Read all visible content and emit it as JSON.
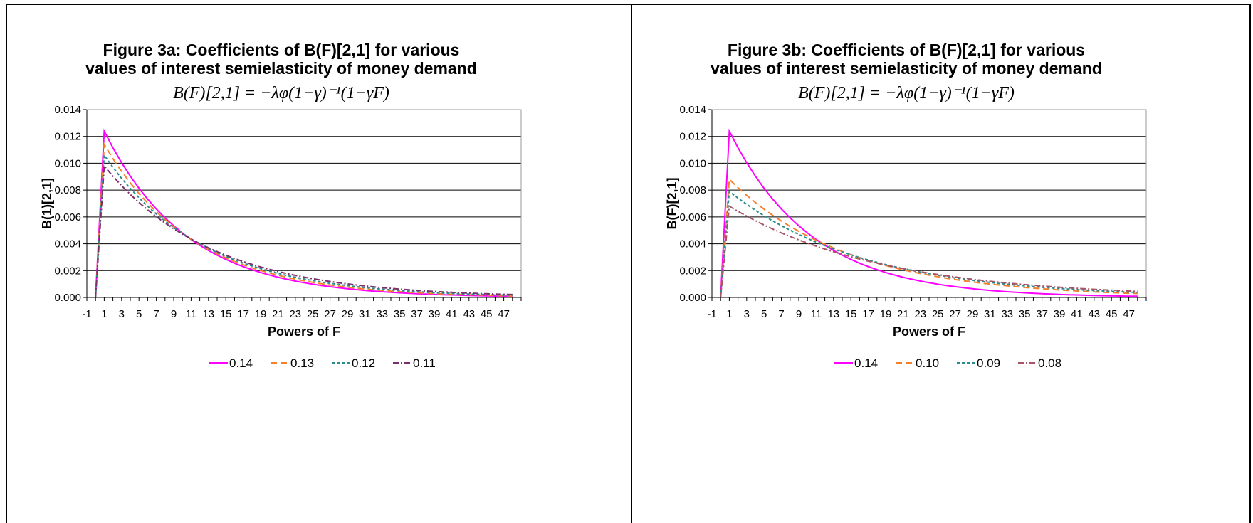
{
  "chart_data": [
    {
      "type": "line",
      "title": "Figure 3a: Coefficients of B(F)[2,1] for various",
      "subtitle": "values of interest semielasticity of money demand",
      "formula": "B(F)[2,1] = −λφ(1−γ)⁻¹(1−γF)",
      "xlabel": "Powers of F",
      "ylabel": "B(1)[2,1]",
      "xlim": [
        -1,
        49
      ],
      "ylim": [
        0,
        0.014
      ],
      "x_tick_labels": [
        "-1",
        "1",
        "3",
        "5",
        "7",
        "9",
        "11",
        "13",
        "15",
        "17",
        "19",
        "21",
        "23",
        "25",
        "27",
        "29",
        "31",
        "33",
        "35",
        "37",
        "39",
        "41",
        "43",
        "45",
        "47"
      ],
      "y_tick_labels": [
        "0.000",
        "0.002",
        "0.004",
        "0.006",
        "0.008",
        "0.010",
        "0.012",
        "0.014"
      ],
      "grid": true,
      "legend_position": "bottom",
      "series": [
        {
          "name": "0.14",
          "color": "#ff00ff",
          "dash": "solid",
          "peak": 0.0124,
          "decay": 0.9
        },
        {
          "name": "0.13",
          "color": "#f4802a",
          "dash": "long-dash",
          "peak": 0.0114,
          "decay": 0.908
        },
        {
          "name": "0.12",
          "color": "#2a8c8c",
          "dash": "dash",
          "peak": 0.0106,
          "decay": 0.915
        },
        {
          "name": "0.11",
          "color": "#7a2e6a",
          "dash": "dash-dot",
          "peak": 0.0098,
          "decay": 0.922
        }
      ]
    },
    {
      "type": "line",
      "title": "Figure 3b: Coefficients of B(F)[2,1] for various",
      "subtitle": "values of interest semielasticity of money demand",
      "formula": "B(F)[2,1] = −λφ(1−γ)⁻¹(1−γF)",
      "xlabel": "Powers of F",
      "ylabel": "B(F)[2,1]",
      "xlim": [
        -1,
        49
      ],
      "ylim": [
        0,
        0.014
      ],
      "x_tick_labels": [
        "-1",
        "1",
        "3",
        "5",
        "7",
        "9",
        "11",
        "13",
        "15",
        "17",
        "19",
        "21",
        "23",
        "25",
        "27",
        "29",
        "31",
        "33",
        "35",
        "37",
        "39",
        "41",
        "43",
        "45",
        "47"
      ],
      "y_tick_labels": [
        "0.000",
        "0.002",
        "0.004",
        "0.006",
        "0.008",
        "0.010",
        "0.012",
        "0.014"
      ],
      "grid": true,
      "legend_position": "bottom",
      "series": [
        {
          "name": "0.14",
          "color": "#ff00ff",
          "dash": "solid",
          "peak": 0.0124,
          "decay": 0.9
        },
        {
          "name": "0.10",
          "color": "#f4802a",
          "dash": "long-dash",
          "peak": 0.0088,
          "decay": 0.93
        },
        {
          "name": "0.09",
          "color": "#2a8c8c",
          "dash": "dash",
          "peak": 0.0079,
          "decay": 0.937
        },
        {
          "name": "0.08",
          "color": "#a85466",
          "dash": "dash-dot",
          "peak": 0.0068,
          "decay": 0.944
        }
      ]
    }
  ]
}
